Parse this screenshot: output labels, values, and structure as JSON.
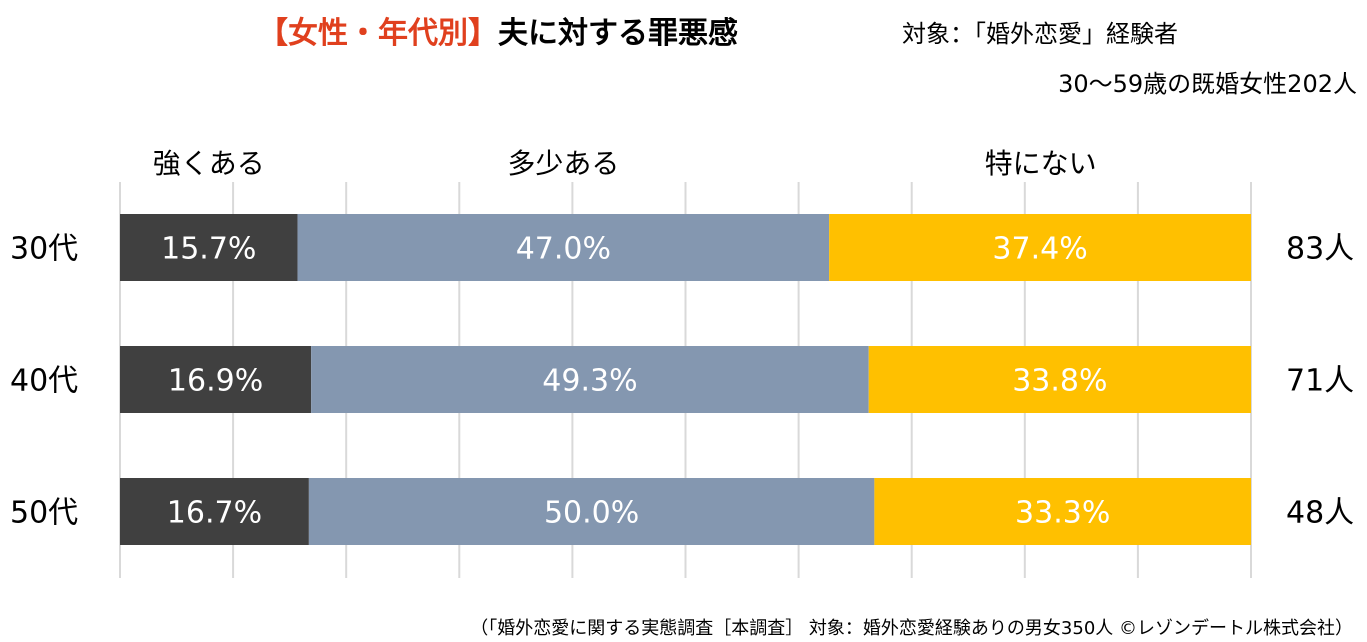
{
  "header": {
    "title_accent": "【女性・年代別】",
    "title_main": "夫に対する罪悪感",
    "subject": "対象：「婚外恋愛」経験者",
    "sample": "30～59歳の既婚女性202人"
  },
  "footnote": "（「婚外恋愛に関する実態調査［本調査］ 対象：婚外恋愛経験ありの男女350人 ©レゾンデートル株式会社）",
  "colors": {
    "strong": "#404040",
    "somewhat": "#8497b0",
    "none": "#ffc000",
    "grid": "#d9d9d9"
  },
  "chart_data": {
    "type": "bar",
    "orientation": "horizontal",
    "stacked": true,
    "xlim": [
      0,
      100
    ],
    "grid": true,
    "categories": [
      "30代",
      "40代",
      "50代"
    ],
    "series": [
      {
        "name": "強くある",
        "values": [
          15.7,
          16.9,
          16.7
        ]
      },
      {
        "name": "多少ある",
        "values": [
          47.0,
          49.3,
          50.0
        ]
      },
      {
        "name": "特にない",
        "values": [
          37.4,
          33.8,
          33.3
        ]
      }
    ],
    "value_labels": [
      [
        "15.7%",
        "47.0%",
        "37.4%"
      ],
      [
        "16.9%",
        "49.3%",
        "33.8%"
      ],
      [
        "16.7%",
        "50.0%",
        "33.3%"
      ]
    ],
    "counts": [
      "83人",
      "71人",
      "48人"
    ]
  }
}
